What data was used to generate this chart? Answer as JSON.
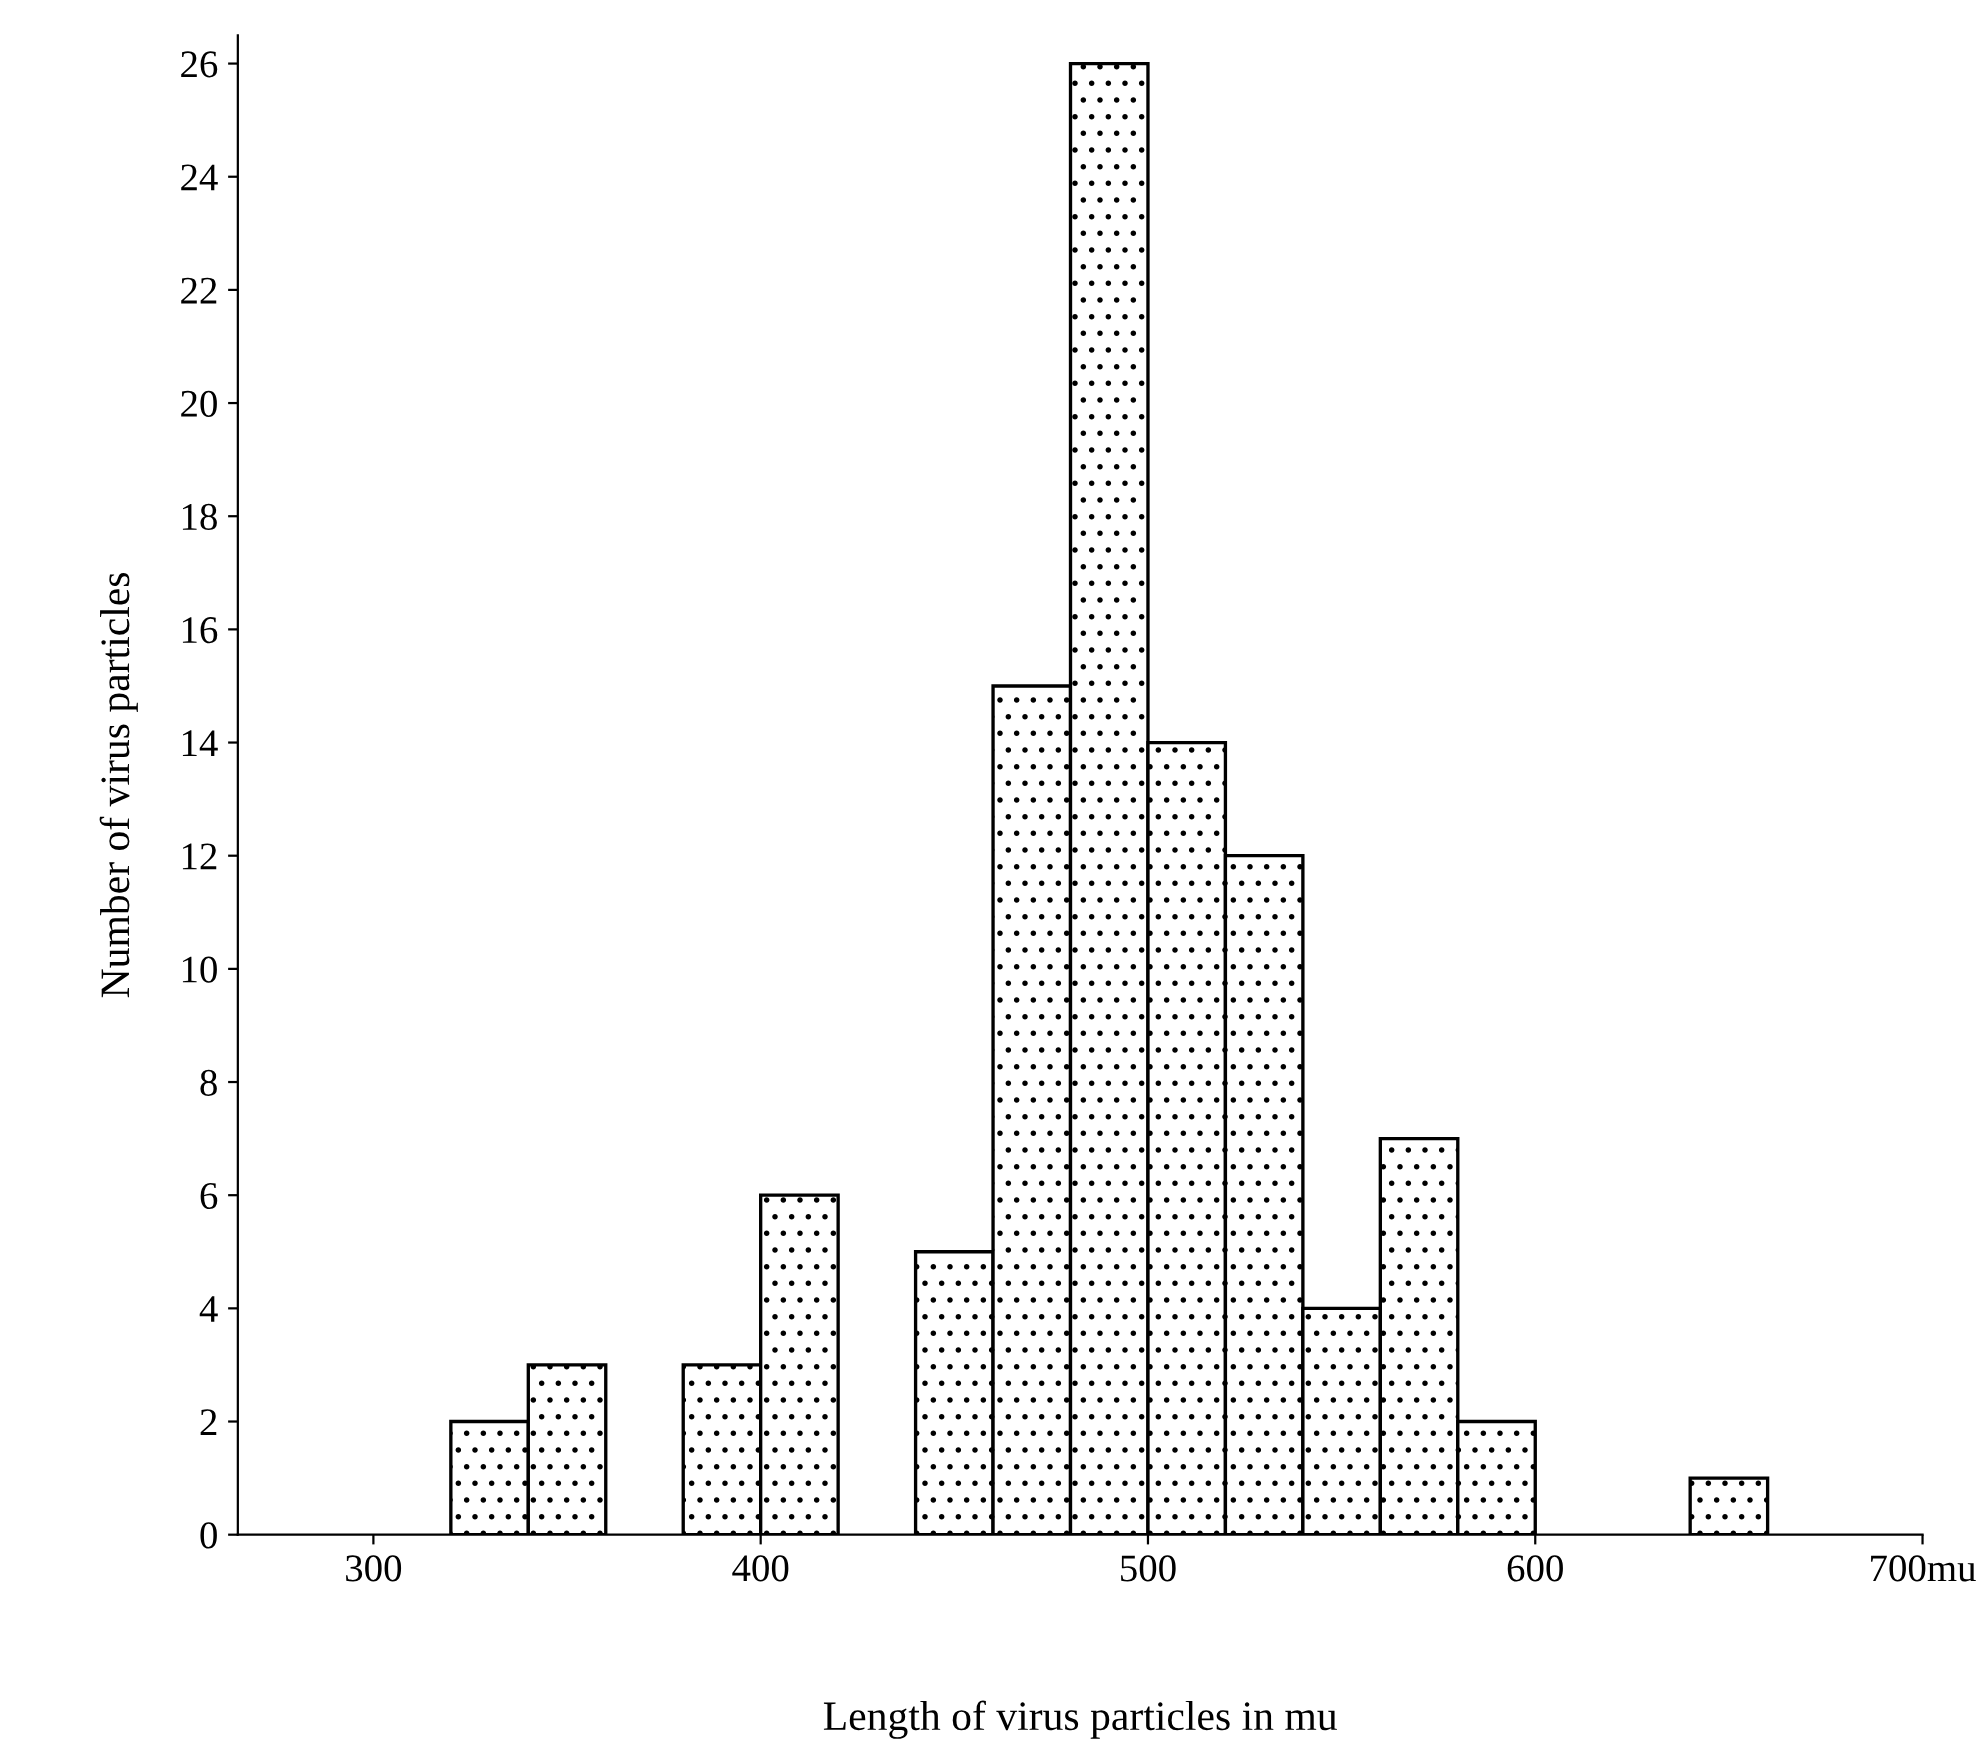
{
  "chart_data": {
    "type": "histogram",
    "xlabel": "Length of virus particles in mu",
    "ylabel": "Number of virus particles",
    "bins": [
      320,
      340,
      360,
      380,
      400,
      420,
      440,
      460,
      480,
      500,
      520,
      540,
      560,
      580,
      600,
      620,
      640,
      660
    ],
    "values": [
      2,
      3,
      0,
      3,
      6,
      0,
      5,
      15,
      26,
      14,
      12,
      4,
      7,
      2,
      0,
      0,
      1
    ],
    "color": "#000000",
    "xlim": [
      265,
      700
    ],
    "xticks": [
      300,
      400,
      500,
      600,
      {
        "value": 700,
        "label": "700mu"
      }
    ],
    "ylim": [
      0,
      26.5
    ],
    "yticks": [
      0,
      2,
      4,
      6,
      8,
      10,
      12,
      14,
      16,
      18,
      20,
      22,
      24,
      26
    ],
    "grid": false,
    "legend": false
  }
}
